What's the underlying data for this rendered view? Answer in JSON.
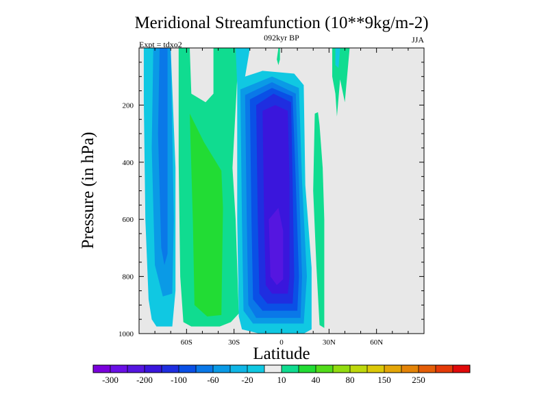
{
  "chart_data": {
    "type": "contour",
    "title": "Meridional Streamfunction (10**9kg/m-2)",
    "center_subtitle": "092kyr BP",
    "left_subtitle": "Expt = tdxo2",
    "right_subtitle": "JJA",
    "xlabel": "Latitude",
    "ylabel": "Pressure (in hPa)",
    "x_ticks": [
      {
        "value": -60,
        "label": "60S"
      },
      {
        "value": -30,
        "label": "30S"
      },
      {
        "value": 0,
        "label": "0"
      },
      {
        "value": 30,
        "label": "30N"
      },
      {
        "value": 60,
        "label": "60N"
      }
    ],
    "y_ticks": [
      {
        "value": 200,
        "label": "200"
      },
      {
        "value": 400,
        "label": "400"
      },
      {
        "value": 600,
        "label": "600"
      },
      {
        "value": 800,
        "label": "800"
      },
      {
        "value": 1000,
        "label": "1000"
      }
    ],
    "xlim": [
      -90,
      90
    ],
    "ylim": [
      1000,
      0
    ],
    "y_reversed": true,
    "background_color": "#e8e8e8",
    "colorbar": {
      "colors": [
        "#7a00dc",
        "#6a10e6",
        "#5516e0",
        "#3a16dc",
        "#1f2ee0",
        "#0a50e6",
        "#0a78e8",
        "#0a9ae6",
        "#10b6e6",
        "#10c8e2",
        "#ececec",
        "#10dc90",
        "#22dc34",
        "#52dc1a",
        "#92dc10",
        "#bed80c",
        "#dcc808",
        "#e4a608",
        "#e48408",
        "#e45e08",
        "#e43a08",
        "#e00a0a"
      ],
      "tick_labels": [
        "-300",
        "-200",
        "-100",
        "-60",
        "-20",
        "10",
        "40",
        "80",
        "150",
        "250"
      ],
      "tick_boundaries": [
        1,
        3,
        5,
        7,
        9,
        11,
        13,
        15,
        17,
        19
      ]
    },
    "regions": [
      {
        "level": "-20",
        "color": "#10c8e2",
        "points": [
          [
            -87,
            1
          ],
          [
            -87,
            180
          ],
          [
            -86,
            600
          ],
          [
            -84,
            880
          ],
          [
            -82,
            950
          ],
          [
            -79,
            975
          ],
          [
            -69,
            975
          ],
          [
            -67,
            850
          ],
          [
            -67,
            420
          ],
          [
            -70,
            1
          ],
          [
            -80,
            1
          ]
        ]
      },
      {
        "level": "-60",
        "color": "#0a9ae6",
        "points": [
          [
            -81,
            1
          ],
          [
            -82,
            350
          ],
          [
            -80,
            760
          ],
          [
            -75,
            870
          ],
          [
            -69,
            860
          ],
          [
            -68,
            600
          ],
          [
            -70,
            1
          ]
        ]
      },
      {
        "level": "-100",
        "color": "#0a78e8",
        "points": [
          [
            -77,
            1
          ],
          [
            -78,
            300
          ],
          [
            -76,
            700
          ],
          [
            -74,
            760
          ],
          [
            -72,
            720
          ],
          [
            -72,
            1
          ]
        ]
      },
      {
        "level": "10",
        "color": "#10dc90",
        "points": [
          [
            -65,
            1
          ],
          [
            -65,
            400
          ],
          [
            -64,
            800
          ],
          [
            -62,
            960
          ],
          [
            -57,
            975
          ],
          [
            -39,
            975
          ],
          [
            -32,
            960
          ],
          [
            -27,
            930
          ],
          [
            -29,
            600
          ],
          [
            -31,
            420
          ],
          [
            -27,
            1
          ],
          [
            -43,
            1
          ],
          [
            -43,
            160
          ],
          [
            -48,
            190
          ],
          [
            -57,
            160
          ],
          [
            -58,
            1
          ]
        ]
      },
      {
        "level": "40",
        "color": "#22dc34",
        "points": [
          [
            -58,
            230
          ],
          [
            -56,
            610
          ],
          [
            -55,
            900
          ],
          [
            -47,
            940
          ],
          [
            -38,
            935
          ],
          [
            -37,
            560
          ],
          [
            -38,
            430
          ],
          [
            -49,
            330
          ]
        ]
      },
      {
        "level": "-20",
        "color": "#10c8e2",
        "points": [
          [
            -29,
            1
          ],
          [
            -28,
            130
          ],
          [
            -28,
            600
          ],
          [
            -27,
            940
          ],
          [
            -25,
            985
          ],
          [
            -14,
            1000
          ],
          [
            14,
            1000
          ],
          [
            19,
            985
          ],
          [
            19,
            770
          ],
          [
            15,
            480
          ],
          [
            14,
            130
          ],
          [
            8,
            90
          ],
          [
            -12,
            80
          ],
          [
            -23,
            100
          ],
          [
            -20,
            1
          ],
          [
            -28,
            1
          ]
        ]
      },
      {
        "level": "-60",
        "color": "#0a9ae6",
        "points": [
          [
            -26,
            145
          ],
          [
            -25,
            600
          ],
          [
            -24,
            920
          ],
          [
            -18,
            965
          ],
          [
            14,
            965
          ],
          [
            16,
            800
          ],
          [
            13,
            470
          ],
          [
            11,
            140
          ],
          [
            -6,
            100
          ]
        ]
      },
      {
        "level": "-100",
        "color": "#0a78e8",
        "points": [
          [
            -23,
            165
          ],
          [
            -22,
            600
          ],
          [
            -21,
            900
          ],
          [
            -16,
            945
          ],
          [
            12,
            945
          ],
          [
            13,
            800
          ],
          [
            11,
            470
          ],
          [
            9,
            160
          ],
          [
            -6,
            120
          ]
        ]
      },
      {
        "level": "-140",
        "color": "#0a50e6",
        "points": [
          [
            -20,
            180
          ],
          [
            -19,
            600
          ],
          [
            -18,
            880
          ],
          [
            -12,
            920
          ],
          [
            10,
            920
          ],
          [
            11,
            800
          ],
          [
            9,
            470
          ],
          [
            7,
            170
          ],
          [
            -6,
            140
          ]
        ]
      },
      {
        "level": "-180",
        "color": "#1f2ee0",
        "points": [
          [
            -16,
            200
          ],
          [
            -15,
            600
          ],
          [
            -14,
            860
          ],
          [
            -9,
            895
          ],
          [
            7,
            895
          ],
          [
            8,
            800
          ],
          [
            7,
            470
          ],
          [
            6,
            190
          ],
          [
            -5,
            160
          ]
        ]
      },
      {
        "level": "-220",
        "color": "#3a16dc",
        "points": [
          [
            -12,
            220
          ],
          [
            -11,
            600
          ],
          [
            -10,
            830
          ],
          [
            -6,
            860
          ],
          [
            4,
            860
          ],
          [
            5,
            800
          ],
          [
            5,
            470
          ],
          [
            4,
            220
          ],
          [
            -4,
            200
          ]
        ]
      },
      {
        "level": "-260",
        "color": "#5516e0",
        "points": [
          [
            -8,
            600
          ],
          [
            -7,
            800
          ],
          [
            -3,
            830
          ],
          [
            1,
            810
          ],
          [
            1,
            640
          ],
          [
            -2,
            560
          ]
        ]
      },
      {
        "level": "10",
        "color": "#10dc90",
        "points": [
          [
            -2,
            1
          ],
          [
            -3,
            40
          ],
          [
            -2,
            60
          ],
          [
            -1,
            40
          ],
          [
            -1,
            1
          ]
        ]
      },
      {
        "level": "10",
        "color": "#10dc90",
        "points": [
          [
            21,
            230
          ],
          [
            20,
            500
          ],
          [
            22,
            760
          ],
          [
            24,
            970
          ],
          [
            27,
            980
          ],
          [
            27,
            600
          ],
          [
            26,
            420
          ],
          [
            24,
            270
          ],
          [
            23,
            225
          ]
        ]
      },
      {
        "level": "10",
        "color": "#10dc90",
        "points": [
          [
            32,
            1
          ],
          [
            32,
            100
          ],
          [
            34,
            160
          ],
          [
            35,
            240
          ],
          [
            37,
            110
          ],
          [
            40,
            190
          ],
          [
            43,
            1
          ]
        ]
      },
      {
        "level": "-20",
        "color": "#10c8e2",
        "points": [
          [
            34,
            1
          ],
          [
            34,
            60
          ],
          [
            36,
            70
          ],
          [
            37,
            1
          ]
        ]
      }
    ]
  }
}
